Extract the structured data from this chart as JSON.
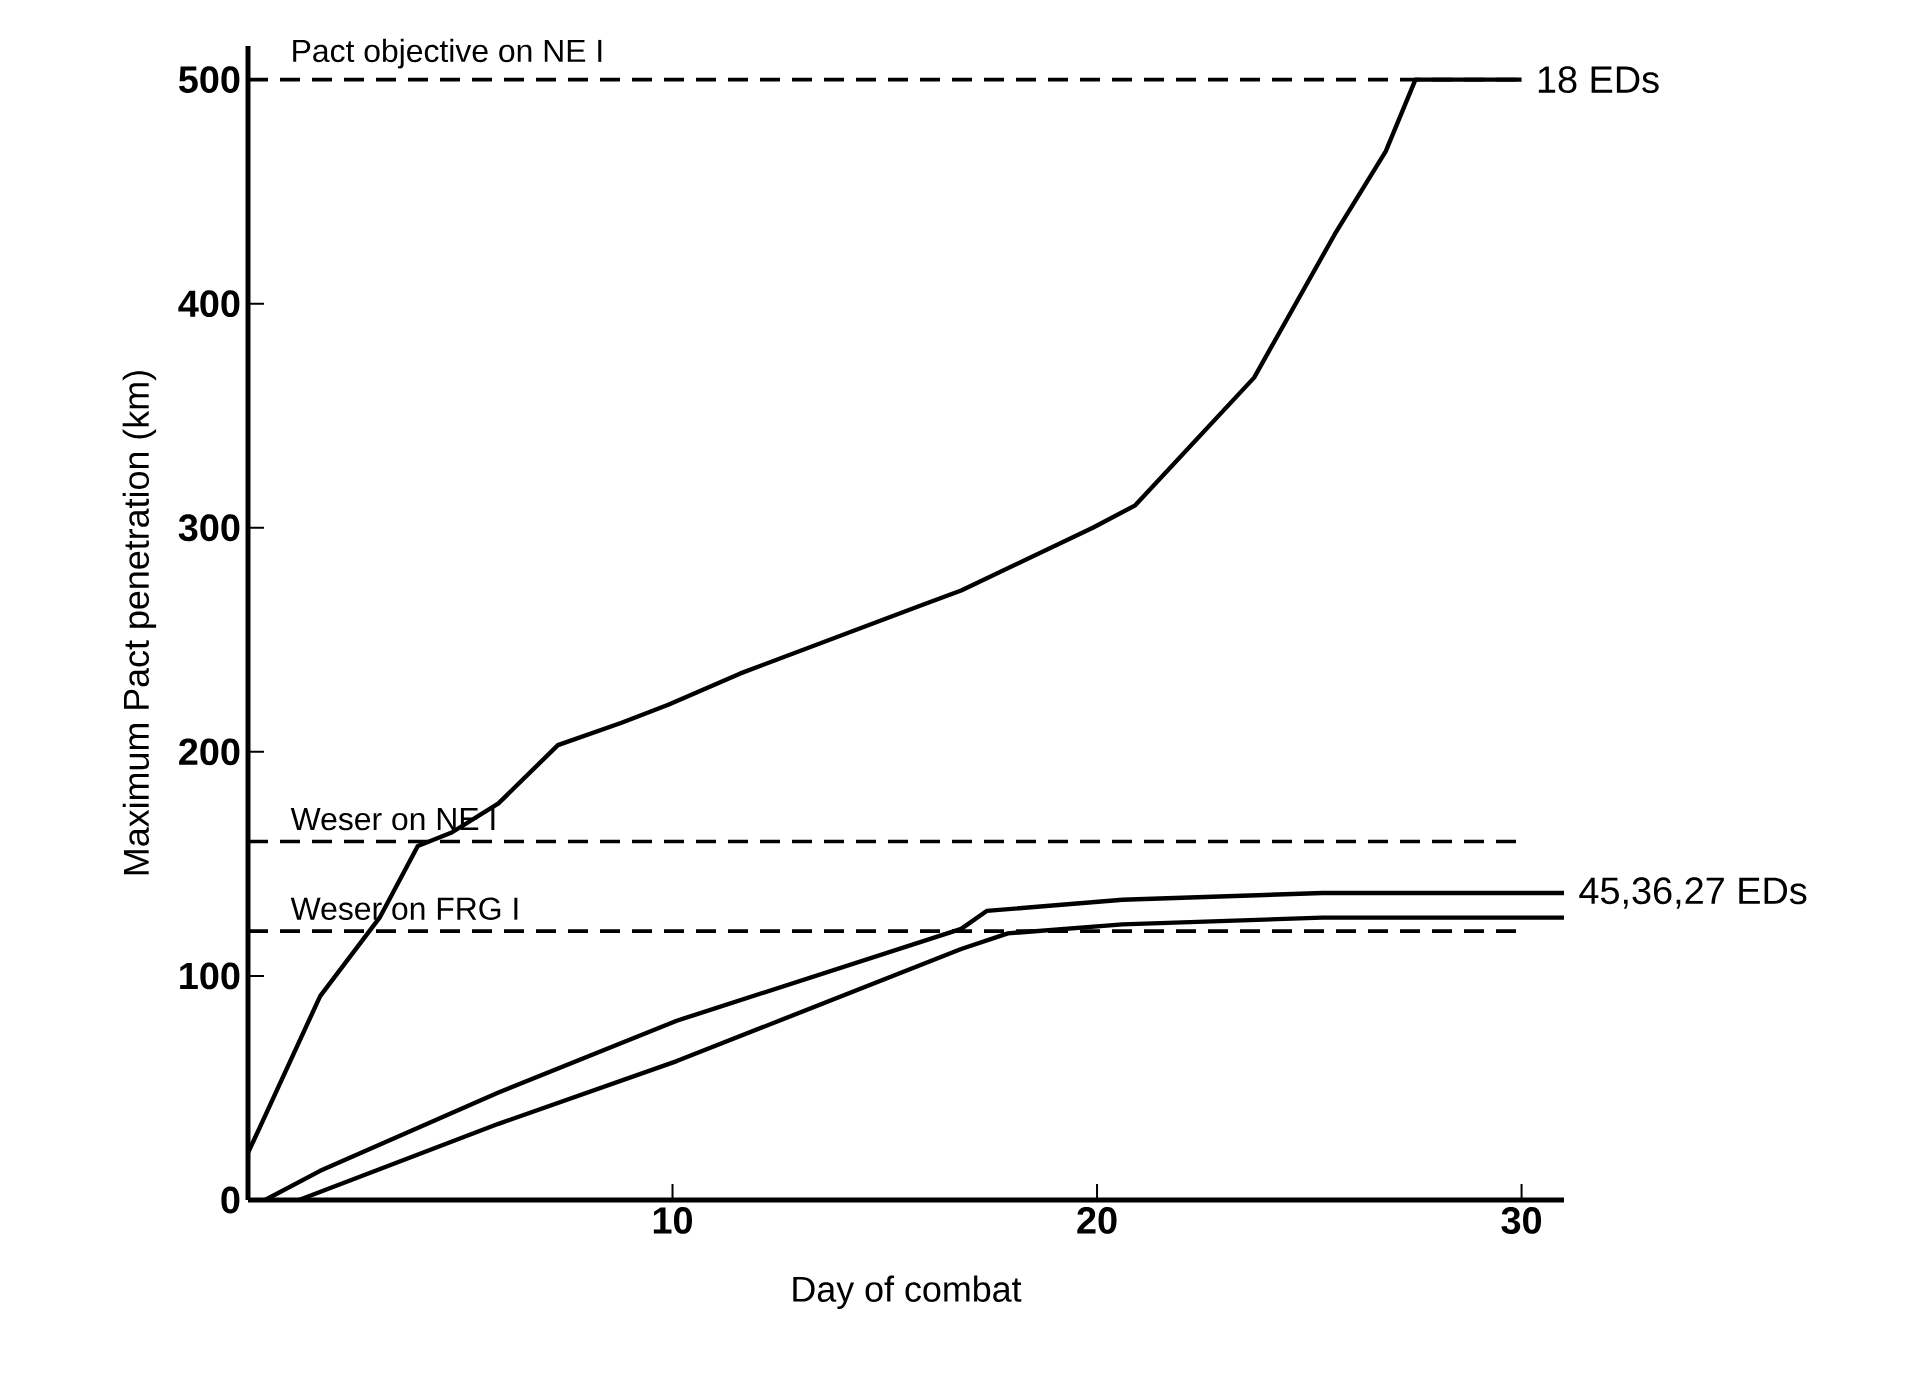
{
  "chart_data": {
    "type": "line",
    "xlabel": "Day of combat",
    "ylabel": "Maximum Pact penetration (km)",
    "xlim": [
      0,
      31
    ],
    "ylim": [
      0,
      515
    ],
    "xticks": [
      10,
      20,
      30
    ],
    "yticks": [
      0,
      100,
      200,
      300,
      400,
      500
    ],
    "series": [
      {
        "color": "#000000",
        "x": [
          0,
          1.7,
          3.1,
          4.0,
          4.8,
          5.9,
          7.3,
          8.8,
          9.9,
          11.6,
          15.8,
          16.8,
          19.9,
          20.9,
          23.7,
          25.6,
          26.8,
          27.5,
          30
        ],
        "values": [
          21,
          91,
          126,
          158,
          164,
          177,
          203,
          213,
          221,
          235,
          265,
          272,
          300,
          310,
          367,
          431,
          468,
          500,
          500
        ]
      },
      {
        "color": "#000000",
        "x": [
          0.4,
          1.7,
          5.9,
          10.1,
          16.8,
          17.4,
          20.6,
          25.3,
          31
        ],
        "values": [
          0,
          13,
          48,
          80,
          121,
          129,
          134,
          137,
          137
        ]
      },
      {
        "color": "#000000",
        "x": [
          1.2,
          5.9,
          10.1,
          16.8,
          17.9,
          20.6,
          25.3,
          31
        ],
        "values": [
          0,
          34,
          62,
          112,
          119,
          123,
          126,
          126
        ]
      }
    ],
    "ref_lines": [
      {
        "axis": "y",
        "value": 500,
        "label": "Pact objective on NE I",
        "line_style": "dashed"
      },
      {
        "axis": "y",
        "value": 160,
        "label": "Weser on NE I",
        "line_style": "dashed"
      },
      {
        "axis": "y",
        "value": 120,
        "label": "Weser on FRG I",
        "line_style": "dashed"
      }
    ],
    "annotations": [
      {
        "text": "18 EDs",
        "x": 30,
        "y": 500
      },
      {
        "text": "45,36,27 EDs",
        "x": 31,
        "y": 137
      }
    ]
  }
}
